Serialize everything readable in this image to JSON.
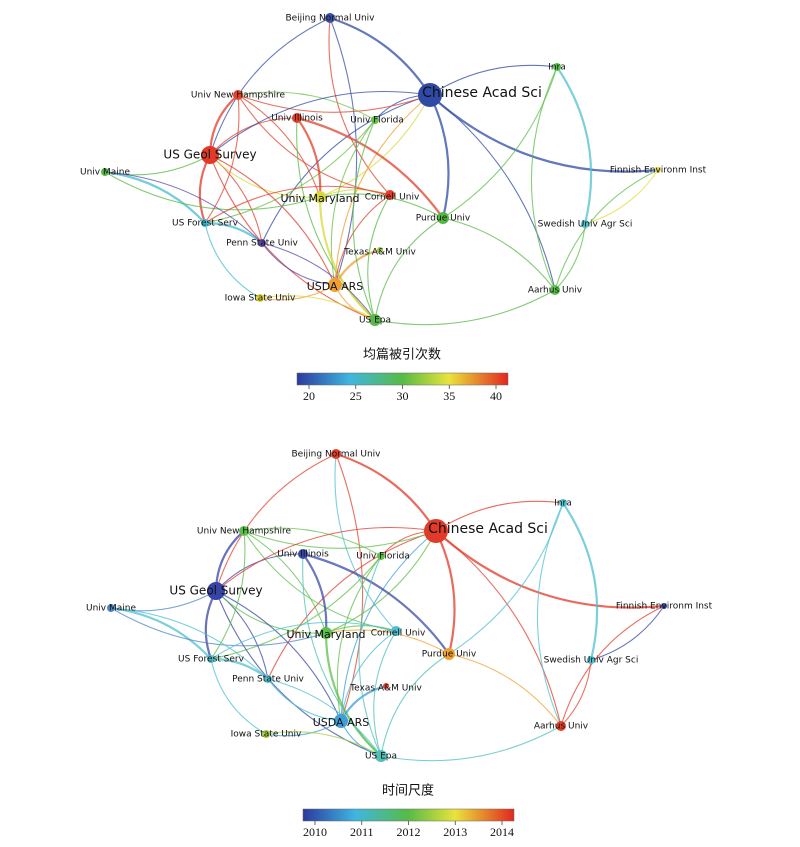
{
  "panels": [
    {
      "legend_title": "均篇被引次数",
      "legend_ticks": [
        20,
        25,
        30,
        35,
        40
      ],
      "nodes": [
        {
          "label": "Beijing Normal Univ",
          "color": "#3a4fa8"
        },
        {
          "label": "Chinese Acad Sci",
          "color": "#2f4aa6"
        },
        {
          "label": "Inra",
          "color": "#5cbf4a"
        },
        {
          "label": "Univ New Hampshire",
          "color": "#e2452b"
        },
        {
          "label": "Univ Illinois",
          "color": "#e0402a"
        },
        {
          "label": "Univ Florida",
          "color": "#6cc04a"
        },
        {
          "label": "US Geol Survey",
          "color": "#e23a28"
        },
        {
          "label": "Univ Maine",
          "color": "#5bb94a"
        },
        {
          "label": "Finnish Environm Inst",
          "color": "#e6d93a"
        },
        {
          "label": "Univ Maryland",
          "color": "#d8d83c"
        },
        {
          "label": "Cornell Univ",
          "color": "#e0402a"
        },
        {
          "label": "Purdue Univ",
          "color": "#55b845"
        },
        {
          "label": "US Forest Serv",
          "color": "#46bcd0"
        },
        {
          "label": "Swedish Univ Agr Sci",
          "color": "#4fc0cf"
        },
        {
          "label": "Penn State Univ",
          "color": "#5a4aa8"
        },
        {
          "label": "Texas A&M Univ",
          "color": "#9acb44"
        },
        {
          "label": "USDA ARS",
          "color": "#f0a030"
        },
        {
          "label": "Aarhus Univ",
          "color": "#5cbf4a"
        },
        {
          "label": "Iowa State Univ",
          "color": "#dfd93c"
        },
        {
          "label": "US Epa",
          "color": "#58b948"
        }
      ]
    },
    {
      "legend_title": "时间尺度",
      "legend_ticks": [
        2010,
        2011,
        2012,
        2013,
        2014
      ],
      "nodes": [
        {
          "label": "Beijing Normal Univ",
          "color": "#e0402a"
        },
        {
          "label": "Chinese Acad Sci",
          "color": "#e23a28"
        },
        {
          "label": "Inra",
          "color": "#52c0d2"
        },
        {
          "label": "Univ New Hampshire",
          "color": "#5cbf4a"
        },
        {
          "label": "Univ Illinois",
          "color": "#3a4aa8"
        },
        {
          "label": "Univ Florida",
          "color": "#62c04a"
        },
        {
          "label": "US Geol Survey",
          "color": "#3544a6"
        },
        {
          "label": "Univ Maine",
          "color": "#4e88c8"
        },
        {
          "label": "Finnish Environm Inst",
          "color": "#3544a6"
        },
        {
          "label": "Univ Maryland",
          "color": "#5cbf4a"
        },
        {
          "label": "Cornell Univ",
          "color": "#4fbfd0"
        },
        {
          "label": "Purdue Univ",
          "color": "#f0a030"
        },
        {
          "label": "US Forest Serv",
          "color": "#50c0d0"
        },
        {
          "label": "Swedish Univ Agr Sci",
          "color": "#4fc0cf"
        },
        {
          "label": "Penn State Univ",
          "color": "#50c0d0"
        },
        {
          "label": "Texas A&M Univ",
          "color": "#e0402a"
        },
        {
          "label": "USDA ARS",
          "color": "#3f9ed8"
        },
        {
          "label": "Aarhus Univ",
          "color": "#e0402a"
        },
        {
          "label": "Iowa State Univ",
          "color": "#a8d040"
        },
        {
          "label": "US Epa",
          "color": "#4fc0b8"
        }
      ]
    }
  ]
}
